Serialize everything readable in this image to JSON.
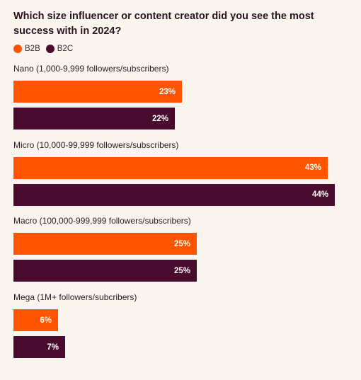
{
  "title": "Which size influencer or content creator did you see the most success with in 2024?",
  "legend": [
    {
      "label": "B2B",
      "color": "#ff5500"
    },
    {
      "label": "B2C",
      "color": "#4a0c2e"
    }
  ],
  "chart_data": {
    "type": "bar",
    "orientation": "horizontal",
    "title": "Which size influencer or content creator did you see the most success with in 2024?",
    "categories": [
      "Nano (1,000-9,999 followers/subscribers)",
      "Micro (10,000-99,999 followers/subscribers)",
      "Macro (100,000-999,999 followers/subscribers)",
      "Mega (1M+ followers/subcribers)"
    ],
    "series": [
      {
        "name": "B2B",
        "values": [
          23,
          43,
          25,
          6
        ],
        "labels": [
          "23%",
          "43%",
          "25%",
          "6%"
        ]
      },
      {
        "name": "B2C",
        "values": [
          22,
          44,
          25,
          7
        ],
        "labels": [
          "22%",
          "44%",
          "25%",
          "7%"
        ]
      }
    ],
    "legend_position": "top-left",
    "grid": false
  }
}
